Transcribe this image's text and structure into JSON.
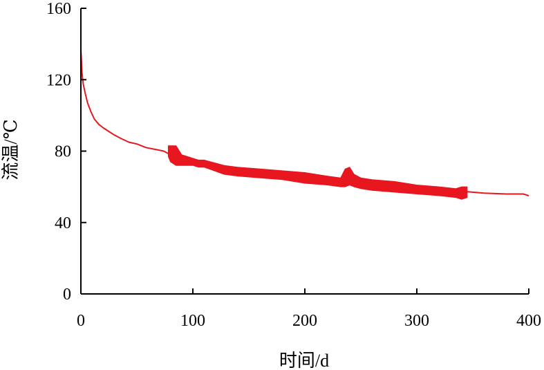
{
  "chart_data": {
    "type": "line",
    "title": "",
    "xlabel": "时间/d",
    "ylabel": "流温/℃",
    "xlim": [
      0,
      400
    ],
    "ylim": [
      0,
      160
    ],
    "x_ticks": [
      0,
      100,
      200,
      300,
      400
    ],
    "y_ticks": [
      0,
      40,
      80,
      120,
      160
    ],
    "x_tick_labels": [
      "0",
      "100",
      "200",
      "300",
      "400"
    ],
    "y_tick_labels": [
      "0",
      "40",
      "80",
      "120",
      "160"
    ],
    "grid": false,
    "legend": "none",
    "series": [
      {
        "color": "#e8161e",
        "x": [
          0,
          1,
          2,
          4,
          6,
          9,
          12,
          16,
          20,
          25,
          30,
          36,
          43,
          50,
          58,
          66,
          74,
          80,
          90,
          100,
          112,
          125,
          140,
          160,
          180,
          200,
          220,
          240,
          260,
          280,
          300,
          320,
          340,
          350,
          360,
          380,
          395,
          400
        ],
        "y": [
          137,
          124,
          118,
          112,
          107,
          102,
          98,
          95,
          93,
          91,
          89,
          87,
          85,
          84,
          82,
          81,
          80,
          78,
          76,
          75,
          73,
          71,
          70,
          68,
          67,
          66,
          64,
          63,
          62,
          61,
          59,
          58.5,
          57.5,
          57,
          56.5,
          56,
          56,
          55
        ],
        "noisy_band": {
          "x": [
            78,
            80,
            85,
            90,
            95,
            100,
            105,
            110,
            128,
            140,
            160,
            180,
            200,
            220,
            232,
            236,
            240,
            244,
            250,
            260,
            280,
            300,
            320,
            335,
            340,
            345
          ],
          "low": [
            77,
            74,
            72,
            72,
            72,
            72,
            71,
            71,
            67,
            66,
            65,
            64,
            62,
            61,
            60,
            60,
            61,
            60,
            59,
            58,
            57,
            56,
            55,
            54,
            53,
            54
          ],
          "high": [
            83,
            83,
            83,
            78,
            77,
            76,
            75,
            75,
            72,
            71,
            70,
            69,
            68,
            66,
            65,
            70,
            71,
            67,
            65,
            64,
            63,
            61,
            60,
            59,
            60,
            60
          ]
        }
      }
    ]
  }
}
